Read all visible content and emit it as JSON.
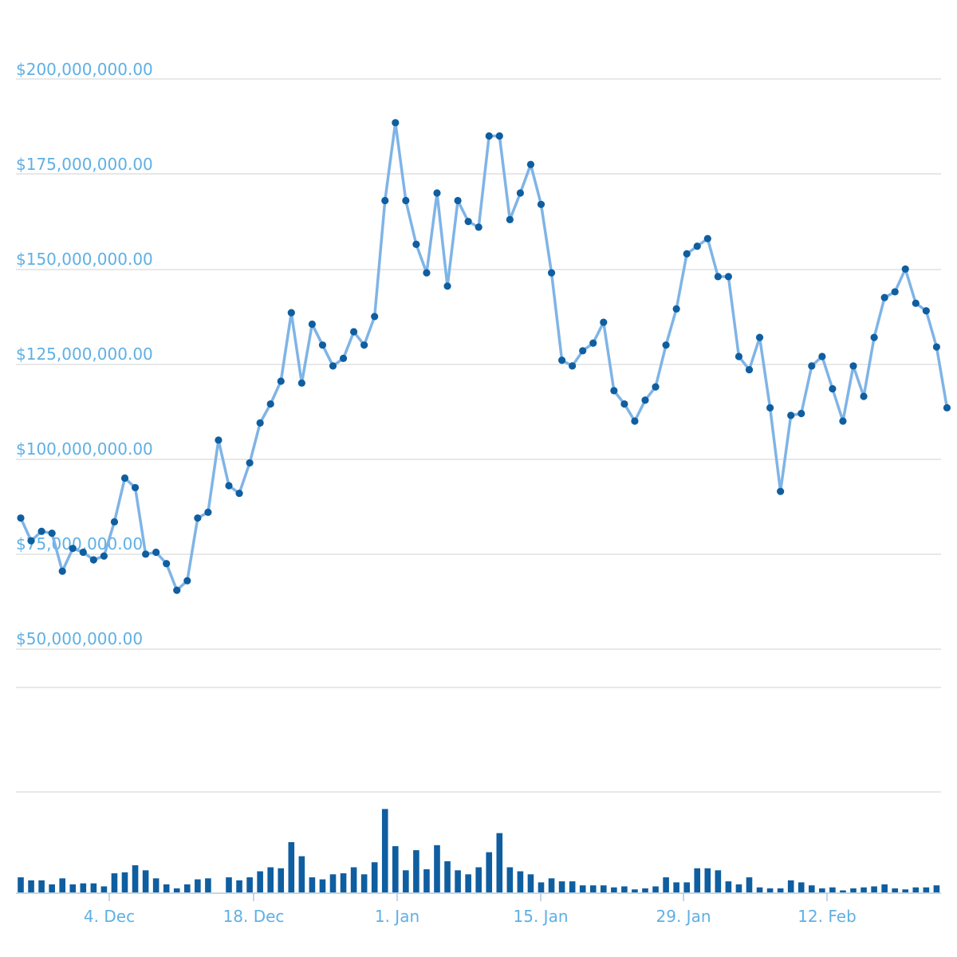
{
  "chart_data": {
    "type": "line",
    "title": "",
    "xlabel": "",
    "ylabel": "",
    "x_tick_labels": [
      "4. Dec",
      "18. Dec",
      "1. Jan",
      "15. Jan",
      "29. Jan",
      "12. Feb"
    ],
    "y_tick_labels": [
      "$50,000,000.00",
      "$75,000,000.00",
      "$100,000,000.00",
      "$125,000,000.00",
      "$150,000,000.00",
      "$175,000,000.00",
      "$200,000,000.00"
    ],
    "ylim": [
      40000000,
      200000000
    ],
    "grid": true,
    "legend": "none",
    "colors": {
      "line": "#7fb4e6",
      "points": "#0f5ea0",
      "bars": "#0f5ea0",
      "labels": "#5fb0e4",
      "grid": "#e0e0e0"
    },
    "series": [
      {
        "type": "line",
        "values": [
          84500000,
          78500000,
          81000000,
          80500000,
          70500000,
          76500000,
          75500000,
          73500000,
          74500000,
          83500000,
          95000000,
          92500000,
          75000000,
          75500000,
          72500000,
          65500000,
          68000000,
          84500000,
          86000000,
          105000000,
          93000000,
          91000000,
          99000000,
          109500000,
          114500000,
          120500000,
          138500000,
          120000000,
          135500000,
          130000000,
          124500000,
          126500000,
          133500000,
          130000000,
          137500000,
          168000000,
          188500000,
          168000000,
          156500000,
          149000000,
          170000000,
          145500000,
          168000000,
          162500000,
          161000000,
          185000000,
          185000000,
          163000000,
          170000000,
          177500000,
          167000000,
          149000000,
          126000000,
          124500000,
          128500000,
          130500000,
          136000000,
          118000000,
          114500000,
          110000000,
          115500000,
          119000000,
          130000000,
          139500000,
          154000000,
          156000000,
          158000000,
          148000000,
          148000000,
          127000000,
          123500000,
          132000000,
          113500000,
          91500000,
          111500000,
          112000000,
          124500000,
          127000000,
          118500000,
          110000000,
          124500000,
          116500000,
          132000000,
          142500000,
          144000000,
          150000000,
          141000000,
          139000000,
          129500000,
          113500000
        ]
      },
      {
        "type": "bar",
        "values": [
          15,
          12,
          12,
          8,
          14,
          8,
          9,
          9,
          6,
          19,
          20,
          27,
          22,
          14,
          8,
          4,
          8,
          13,
          14,
          0,
          15,
          12,
          15,
          21,
          25,
          24,
          50,
          36,
          15,
          13,
          18,
          19,
          25,
          18,
          30,
          83,
          46,
          22,
          42,
          23,
          47,
          31,
          22,
          18,
          25,
          40,
          59,
          25,
          21,
          18,
          10,
          14,
          11,
          11,
          7,
          7,
          7,
          5,
          6,
          3,
          4,
          6,
          15,
          10,
          10,
          24,
          24,
          22,
          11,
          8,
          15,
          5,
          4,
          4,
          12,
          10,
          7,
          4,
          5,
          2,
          4,
          5,
          6,
          8,
          4,
          3,
          5,
          5,
          7,
          0
        ]
      }
    ]
  }
}
